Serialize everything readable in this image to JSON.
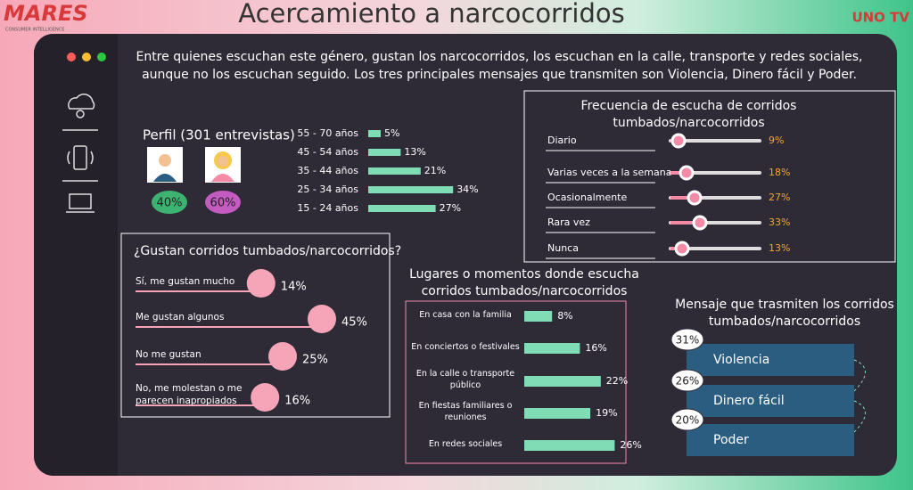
{
  "header": {
    "brand": "MARES",
    "brand_sub": "CONSUMER INTELLIGENCE",
    "title": "Acercamiento a narcocorridos",
    "logo": "UNO TV"
  },
  "summary": "Entre quienes escuchan este género, gustan los narcocorridos, los escuchan en la calle, transporte y redes sociales, aunque no los escuchan seguido. Los tres principales mensajes que transmiten son Violencia, Dinero fácil y Poder.",
  "chart_data": [
    {
      "type": "bar",
      "title": "Perfil (301 entrevistas)",
      "categories": [
        "55 - 70 años",
        "45 - 54 años",
        "35 - 44 años",
        "25 - 34 años",
        "15 - 24 años"
      ],
      "values": [
        5,
        13,
        21,
        34,
        27
      ],
      "value_labels": [
        "5%",
        "13%",
        "21%",
        "34%",
        "27%"
      ],
      "color": "#7fdcb5",
      "xlim": [
        0,
        40
      ]
    },
    {
      "type": "badge",
      "values": [
        40,
        60
      ],
      "value_labels": [
        "40%",
        "60%"
      ],
      "colors": [
        "#3cb371",
        "#c35bc0"
      ]
    },
    {
      "type": "slider",
      "title": "Frecuencia de escucha de corridos tumbados/narcocorridos",
      "categories": [
        "Diario",
        "Varias veces a la semana",
        "Ocasionalmente",
        "Rara vez",
        "Nunca"
      ],
      "values": [
        9,
        18,
        27,
        33,
        13
      ],
      "value_labels": [
        "9%",
        "18%",
        "27%",
        "33%",
        "13%"
      ],
      "color": "#f48aa6",
      "xlim": [
        0,
        100
      ]
    },
    {
      "type": "lollipop",
      "title": "¿Gustan corridos tumbados/narcocorridos?",
      "categories": [
        "Sí, me gustan mucho",
        "Me gustan algunos",
        "No me gustan",
        "No, me molestan o me parecen inapropiados"
      ],
      "values": [
        14,
        45,
        25,
        16
      ],
      "value_labels": [
        "14%",
        "45%",
        "25%",
        "16%"
      ],
      "color": "#f6a5b9",
      "xlim": [
        0,
        50
      ]
    },
    {
      "type": "hbar",
      "title": "Lugares o momentos donde escucha corridos tumbados/narcocorridos",
      "categories": [
        "En casa con la familia",
        "En conciertos o festivales",
        "En la calle o transporte público",
        "En fiestas familiares o reuniones",
        "En redes sociales"
      ],
      "values": [
        8,
        16,
        22,
        19,
        26
      ],
      "value_labels": [
        "8%",
        "16%",
        "22%",
        "19%",
        "26%"
      ],
      "color": "#7fdcb5",
      "xlim": [
        0,
        30
      ]
    },
    {
      "type": "ranked",
      "title": "Mensaje que trasmiten los corridos tumbados/narcocorridos",
      "categories": [
        "Violencia",
        "Dinero fácil",
        "Poder"
      ],
      "values": [
        31,
        26,
        20
      ],
      "value_labels": [
        "31%",
        "26%",
        "20%"
      ],
      "color": "#2a5d7f"
    }
  ]
}
